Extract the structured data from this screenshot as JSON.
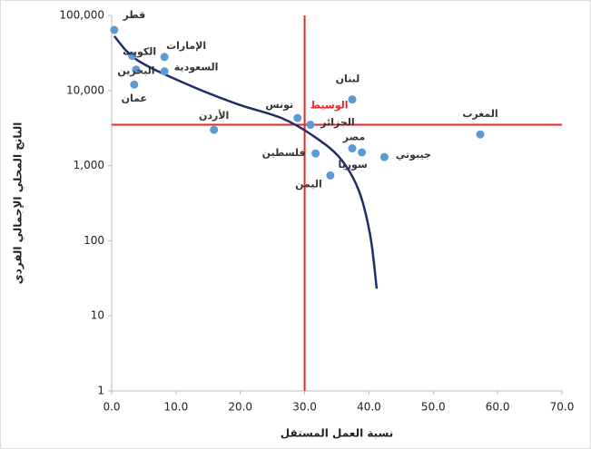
{
  "chart_data": {
    "type": "scatter",
    "x_label": "نسبة العمل المستقل",
    "y_label": "الناتج المحلي الإجمالي الفردي",
    "labels": [
      "قطر",
      "الكويت",
      "البحرين",
      "عمان",
      "الإمارات",
      "السعودية",
      "الأردن",
      "تونس",
      "لبنان",
      "الجزائر",
      "مصر",
      "سوريا",
      "فلسطين",
      "اليمن",
      "جيبوتي",
      "المغرب"
    ],
    "x": [
      0.4,
      3.2,
      3.8,
      3.5,
      8.2,
      8.2,
      15.9,
      28.9,
      37.4,
      30.9,
      37.4,
      38.9,
      31.7,
      34.0,
      42.4,
      57.3
    ],
    "values": [
      64000,
      29000,
      19000,
      12000,
      28000,
      18000,
      3000,
      4300,
      7600,
      3500,
      1700,
      1500,
      1450,
      740,
      1300,
      2600
    ],
    "color": "#5b9bd5",
    "trend": {
      "x": [
        0.4,
        3.8,
        10.9,
        19.3,
        26.4,
        31.3,
        35.5,
        38.4,
        40.2,
        41.2
      ],
      "y": [
        53000,
        26000,
        13000,
        6700,
        4300,
        2500,
        1260,
        470,
        117,
        23
      ],
      "color": "#1f2d6b"
    },
    "median": {
      "label": "الوسيط",
      "x": 30,
      "y": 3500,
      "color": "#e8262a"
    },
    "xlim": [
      0,
      70
    ],
    "xticks": [
      {
        "value": 0,
        "label": "0.0"
      },
      {
        "value": 10,
        "label": "10.0"
      },
      {
        "value": 20,
        "label": "20.0"
      },
      {
        "value": 30,
        "label": "30.0"
      },
      {
        "value": 40,
        "label": "40.0"
      },
      {
        "value": 50,
        "label": "50.0"
      },
      {
        "value": 60,
        "label": "60.0"
      },
      {
        "value": 70,
        "label": "70.0"
      }
    ],
    "ylim": [
      1,
      100000
    ],
    "yticks": [
      1,
      10,
      100,
      {
        "value": 1000,
        "label": "1,000"
      },
      {
        "value": 10000,
        "label": "10,000"
      },
      {
        "value": 100000,
        "label": "100,000"
      }
    ],
    "log_y": true,
    "grid": false
  }
}
